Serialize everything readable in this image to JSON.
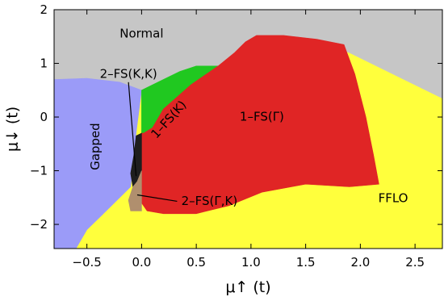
{
  "chart_data": {
    "type": "heatmap",
    "title": "",
    "xlabel": "μ↑ (t)",
    "ylabel": "μ↓ (t)",
    "xlim": [
      -0.8,
      2.75
    ],
    "ylim": [
      -2.45,
      2.0
    ],
    "x_ticks": [
      -0.5,
      0.0,
      0.5,
      1.0,
      1.5,
      2.0,
      2.5
    ],
    "x_tick_labels": [
      "−0.5",
      "0.0",
      "0.5",
      "1.0",
      "1.5",
      "2.0",
      "2.5"
    ],
    "y_ticks": [
      -2,
      -1,
      0,
      1,
      2
    ],
    "y_tick_labels": [
      "−2",
      "−1",
      "0",
      "1",
      "2"
    ],
    "grid": false,
    "colors": {
      "Normal": "#c6c6c6",
      "Gapped": "#9b9bf8",
      "1-FS(K)": "#20c820",
      "1-FS(Γ)": "#e02525",
      "FFLO": "#ffff3c",
      "2-FS(K,K)": "#1e1e1e",
      "2-FS(Γ,K)": "#b08f6e"
    },
    "regions": [
      {
        "name": "Normal",
        "label": "Normal",
        "label_at": [
          0.0,
          1.55
        ],
        "boundary": [
          [
            -0.8,
            2.0
          ],
          [
            2.75,
            2.0
          ],
          [
            2.75,
            0.35
          ],
          [
            2.3,
            0.8
          ],
          [
            1.9,
            1.2
          ],
          [
            1.6,
            1.4
          ],
          [
            1.3,
            1.52
          ],
          [
            1.05,
            1.52
          ],
          [
            0.95,
            1.4
          ],
          [
            0.85,
            1.2
          ],
          [
            0.7,
            0.95
          ],
          [
            0.5,
            0.95
          ],
          [
            0.35,
            0.85
          ],
          [
            0.15,
            0.65
          ],
          [
            0.0,
            0.5
          ],
          [
            -0.2,
            0.65
          ],
          [
            -0.5,
            0.72
          ],
          [
            -0.8,
            0.7
          ]
        ]
      },
      {
        "name": "Gapped",
        "label": "Gapped",
        "label_at": [
          -0.42,
          -0.55
        ],
        "label_rotation": -90,
        "boundary": [
          [
            -0.8,
            0.7
          ],
          [
            -0.5,
            0.72
          ],
          [
            -0.2,
            0.65
          ],
          [
            0.0,
            0.5
          ],
          [
            -0.05,
            -0.3
          ],
          [
            -0.1,
            -1.3
          ],
          [
            -0.2,
            -1.5
          ],
          [
            -0.35,
            -1.8
          ],
          [
            -0.5,
            -2.1
          ],
          [
            -0.6,
            -2.45
          ],
          [
            -0.8,
            -2.45
          ]
        ]
      },
      {
        "name": "1-FS(K)",
        "label": "1–FS(K)",
        "label_at": [
          0.25,
          -0.05
        ],
        "label_rotation": -48,
        "boundary": [
          [
            0.0,
            0.5
          ],
          [
            0.15,
            0.65
          ],
          [
            0.35,
            0.85
          ],
          [
            0.5,
            0.95
          ],
          [
            0.7,
            0.95
          ],
          [
            0.45,
            0.6
          ],
          [
            0.2,
            0.15
          ],
          [
            0.1,
            -0.2
          ],
          [
            0.02,
            -0.3
          ],
          [
            0.0,
            -0.3
          ]
        ]
      },
      {
        "name": "1-FS(Γ)",
        "label": "1–FS(Γ)",
        "label_at": [
          1.1,
          0.0
        ],
        "boundary": [
          [
            0.7,
            0.95
          ],
          [
            0.85,
            1.2
          ],
          [
            0.95,
            1.4
          ],
          [
            1.05,
            1.52
          ],
          [
            1.3,
            1.52
          ],
          [
            1.6,
            1.45
          ],
          [
            1.85,
            1.35
          ],
          [
            1.95,
            0.8
          ],
          [
            2.05,
            0.0
          ],
          [
            2.12,
            -0.7
          ],
          [
            2.17,
            -1.25
          ],
          [
            1.9,
            -1.3
          ],
          [
            1.5,
            -1.25
          ],
          [
            1.1,
            -1.4
          ],
          [
            0.8,
            -1.65
          ],
          [
            0.5,
            -1.8
          ],
          [
            0.2,
            -1.8
          ],
          [
            0.05,
            -1.75
          ],
          [
            0.0,
            -1.6
          ],
          [
            0.0,
            -0.3
          ],
          [
            0.02,
            -0.3
          ],
          [
            0.1,
            -0.2
          ],
          [
            0.2,
            0.15
          ],
          [
            0.45,
            0.6
          ]
        ]
      },
      {
        "name": "2-FS(K,K)",
        "label": "2–FS(K,K)",
        "label_at": [
          -0.12,
          0.8
        ],
        "pointer_to": [
          -0.05,
          -1.1
        ],
        "boundary": [
          [
            -0.05,
            -0.35
          ],
          [
            0.0,
            -0.3
          ],
          [
            0.0,
            -1.0
          ],
          [
            -0.04,
            -1.2
          ],
          [
            -0.08,
            -1.3
          ],
          [
            -0.1,
            -1.05
          ],
          [
            -0.07,
            -0.7
          ]
        ]
      },
      {
        "name": "2-FS(Γ,K)",
        "label": "2–FS(Γ,K)",
        "label_at": [
          0.62,
          -1.57
        ],
        "pointer_to": [
          -0.04,
          -1.45
        ],
        "boundary": [
          [
            0.0,
            -1.0
          ],
          [
            0.0,
            -1.75
          ],
          [
            -0.1,
            -1.75
          ],
          [
            -0.12,
            -1.55
          ],
          [
            -0.08,
            -1.3
          ],
          [
            -0.04,
            -1.2
          ]
        ]
      }
    ],
    "background_region": {
      "name": "FFLO",
      "label": "FFLO",
      "label_at": [
        2.3,
        -1.52
      ]
    }
  }
}
